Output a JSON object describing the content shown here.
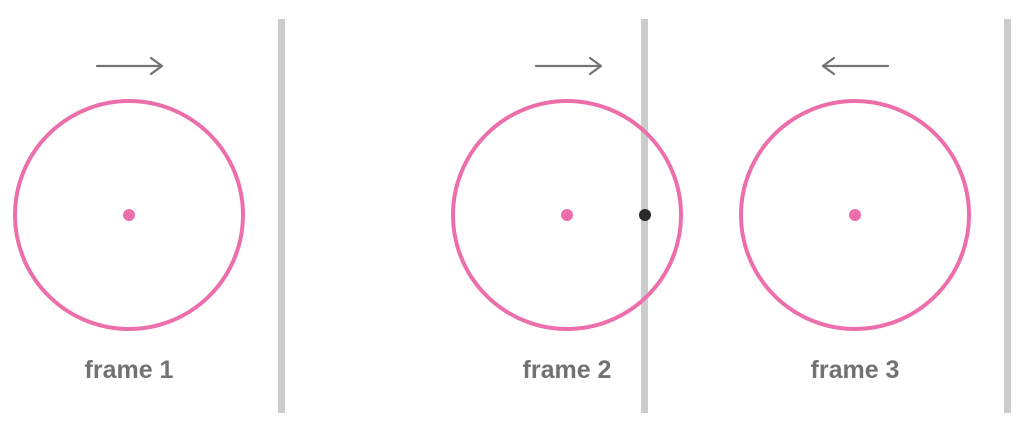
{
  "colors": {
    "circle": "#ec6fac",
    "wall": "#cccccc",
    "arrow": "#737373",
    "caption": "#727272",
    "contact": "#2a2a2a"
  },
  "frames": [
    {
      "label": "frame 1",
      "direction": "right",
      "overlapping_wall": false
    },
    {
      "label": "frame 2",
      "direction": "right",
      "overlapping_wall": true
    },
    {
      "label": "frame 3",
      "direction": "left",
      "overlapping_wall": false
    }
  ]
}
